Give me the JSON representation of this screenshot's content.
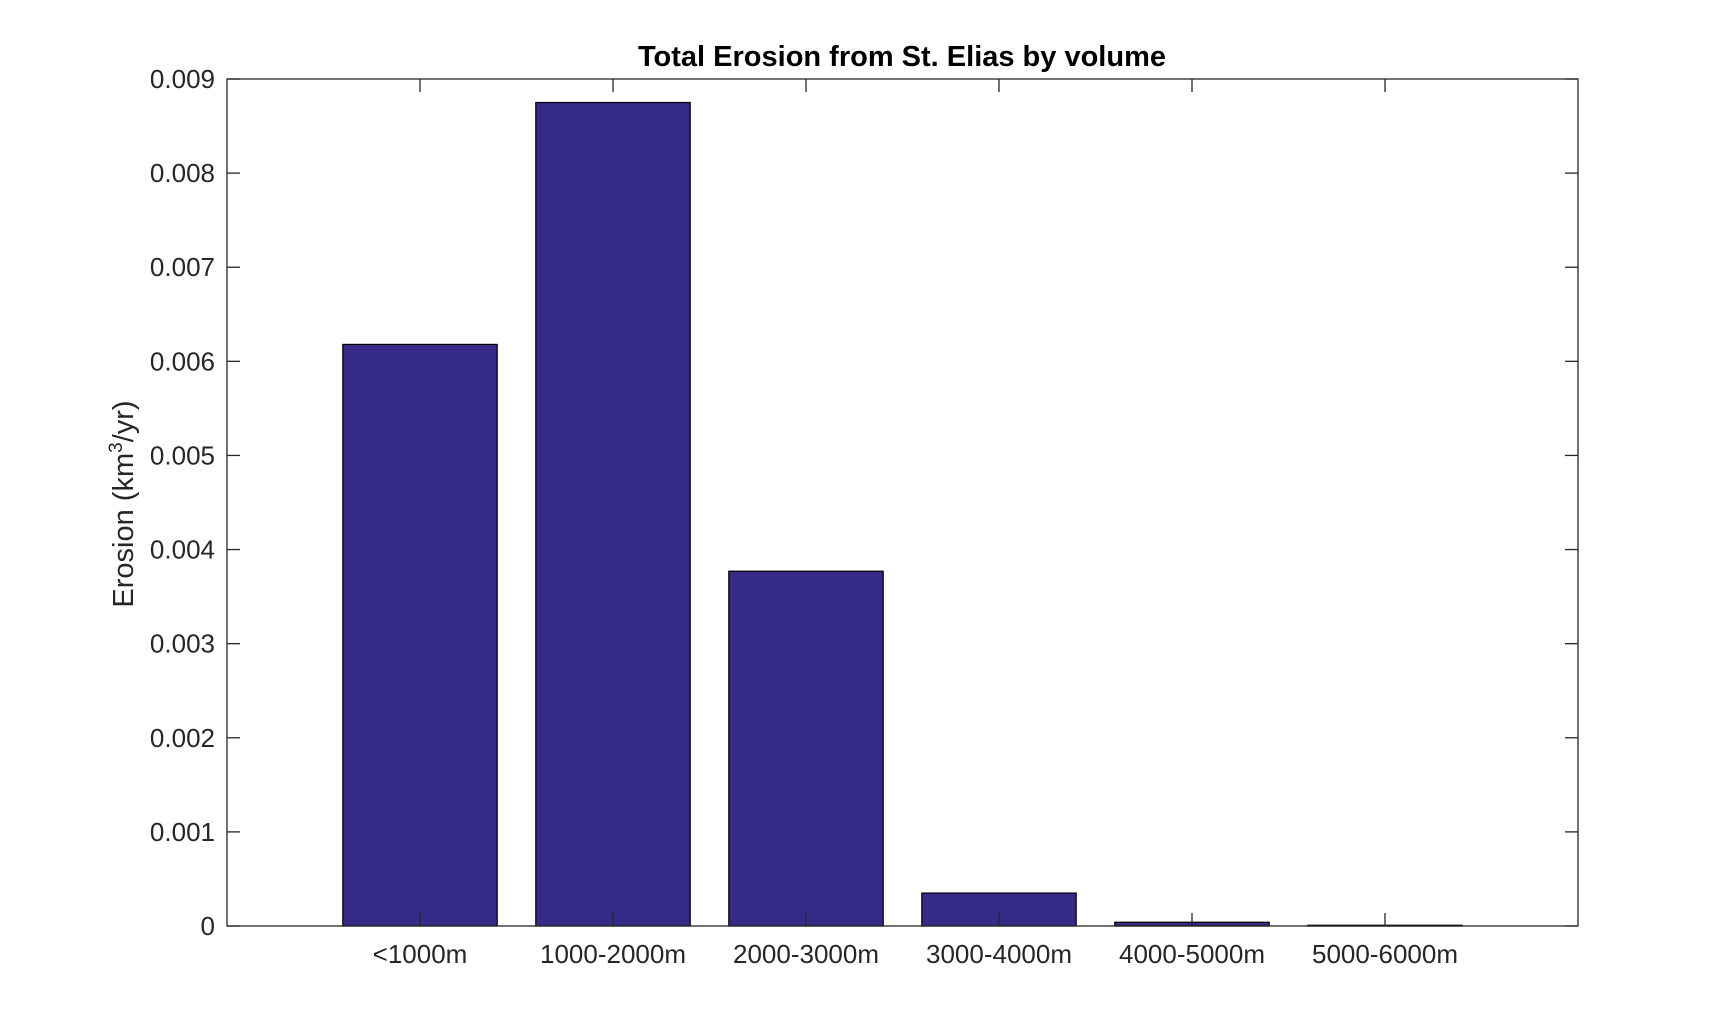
{
  "chart_data": {
    "type": "bar",
    "title": "Total Erosion from St. Elias by volume",
    "xlabel": "",
    "ylabel_main": "Erosion (km",
    "ylabel_superscript": "3",
    "ylabel_tail": "/yr)",
    "categories": [
      "<1000m",
      "1000-2000m",
      "2000-3000m",
      "3000-4000m",
      "4000-5000m",
      "5000-6000m"
    ],
    "values": [
      0.00618,
      0.00875,
      0.00377,
      0.00035,
      4e-05,
      8e-06
    ],
    "xlim": [
      0,
      7
    ],
    "ylim": [
      0,
      0.009
    ],
    "yticks": [
      "0",
      "0.001",
      "0.002",
      "0.003",
      "0.004",
      "0.005",
      "0.006",
      "0.007",
      "0.008",
      "0.009"
    ],
    "grid": false,
    "legend": "none",
    "bar_color": "#352A87",
    "edge_color": "#000000",
    "axis_color": "#262626"
  }
}
